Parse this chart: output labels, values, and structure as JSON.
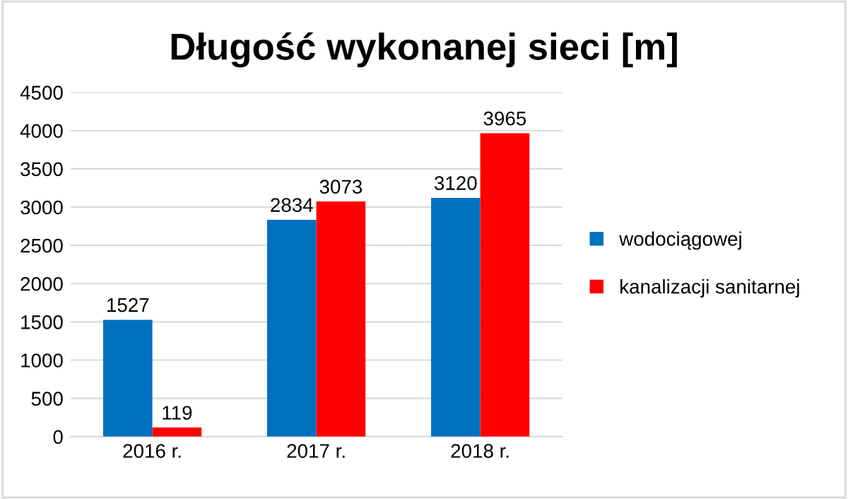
{
  "chart_data": {
    "type": "bar",
    "title": "Długość wykonanej sieci [m]",
    "categories": [
      "2016 r.",
      "2017 r.",
      "2018 r."
    ],
    "series": [
      {
        "name": "wodociągowej",
        "color": "#0070c0",
        "values": [
          1527,
          2834,
          3120
        ]
      },
      {
        "name": "kanalizacji sanitarnej",
        "color": "#ff0000",
        "values": [
          119,
          3073,
          3965
        ]
      }
    ],
    "ylim": [
      0,
      4500
    ],
    "yticks": [
      0,
      500,
      1000,
      1500,
      2000,
      2500,
      3000,
      3500,
      4000,
      4500
    ],
    "grid": "y",
    "legend": "right",
    "data_labels": true
  }
}
